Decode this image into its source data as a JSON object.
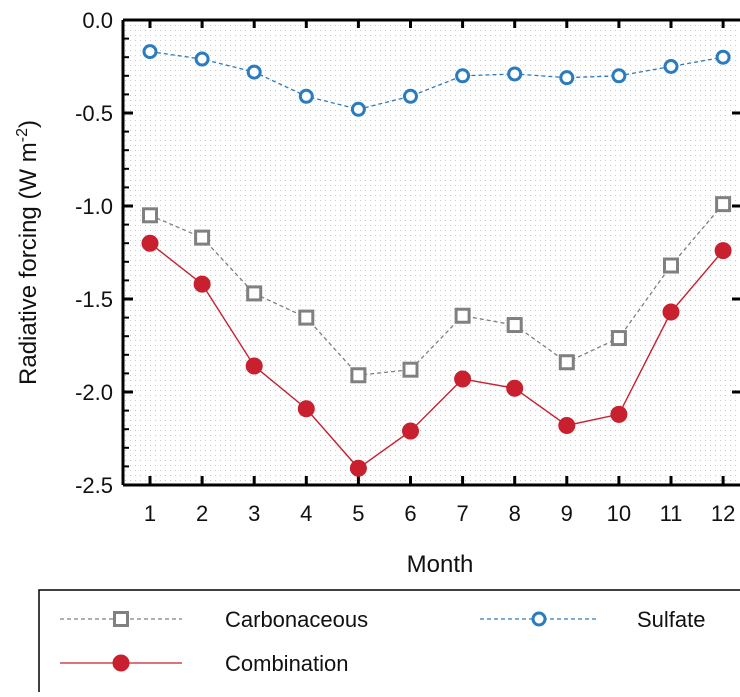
{
  "chart_data": {
    "type": "line",
    "title": "",
    "xlabel": "Month",
    "ylabel": "Radiative forcing (W m-2)",
    "ylabel_parts": {
      "main": "Radiative forcing (W m",
      "sup": "-2",
      "end": ")"
    },
    "xlim": [
      0.5,
      12.0
    ],
    "ylim": [
      -2.5,
      0.0
    ],
    "x": [
      1,
      2,
      3,
      4,
      5,
      6,
      7,
      8,
      9,
      10,
      11,
      12
    ],
    "x_ticks": [
      "1",
      "2",
      "3",
      "4",
      "5",
      "6",
      "7",
      "8",
      "9",
      "10",
      "11",
      "12"
    ],
    "y_ticks": [
      0.0,
      -0.5,
      -1.0,
      -1.5,
      -2.0,
      -2.5
    ],
    "y_tick_labels": [
      "0.0",
      "-0.5",
      "-1.0",
      "-1.5",
      "-2.0",
      "-2.5"
    ],
    "grid": "dotted background pattern",
    "legend_placement": "bottom",
    "series": [
      {
        "name": "Carbonaceous",
        "color": "#808080",
        "marker": "open-square",
        "line_style": "dashed",
        "values": [
          -1.05,
          -1.17,
          -1.47,
          -1.6,
          -1.91,
          -1.88,
          -1.59,
          -1.64,
          -1.84,
          -1.71,
          -1.32,
          -0.99
        ]
      },
      {
        "name": "Sulfate",
        "color": "#2b7bbf",
        "marker": "open-circle",
        "line_style": "dashed",
        "values": [
          -0.17,
          -0.21,
          -0.28,
          -0.41,
          -0.48,
          -0.41,
          -0.3,
          -0.29,
          -0.31,
          -0.3,
          -0.25,
          -0.2
        ]
      },
      {
        "name": "Combination",
        "color": "#c8202e",
        "marker": "filled-circle",
        "line_style": "solid",
        "values": [
          -1.2,
          -1.42,
          -1.86,
          -2.09,
          -2.41,
          -2.21,
          -1.93,
          -1.98,
          -2.18,
          -2.12,
          -1.57,
          -1.24
        ]
      }
    ]
  }
}
